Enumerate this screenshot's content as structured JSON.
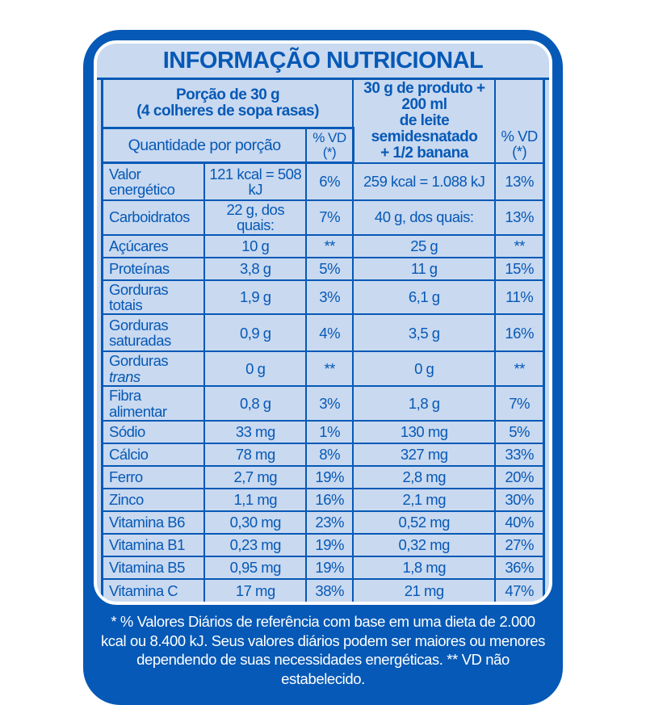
{
  "colors": {
    "primary_blue": "#0659b6",
    "panel_blue": "#c9d9f0",
    "footnote_text": "#ffffff"
  },
  "title": "INFORMAÇÃO NUTRICIONAL",
  "header": {
    "serving_left_line1": "Porção de 30 g",
    "serving_left_line2": "(4 colheres de sopa rasas)",
    "qty_col_label": "Quantidade por porção",
    "vd_col_label": "% VD (*)",
    "serving_right_line1": "30 g de produto + 200 ml",
    "serving_right_line2": "de leite semidesnatado",
    "serving_right_line3": "+ 1/2 banana",
    "vd_col_label_right": "% VD (*)"
  },
  "rows": [
    {
      "name": "Valor energético",
      "qty1": "121 kcal = 508 kJ",
      "vd1": "6%",
      "qty2": "259 kcal = 1.088 kJ",
      "vd2": "13%",
      "tall": true
    },
    {
      "name": "Carboidratos",
      "qty1": "22 g, dos quais:",
      "vd1": "7%",
      "qty2": "40 g, dos quais:",
      "vd2": "13%"
    },
    {
      "name": "Açúcares",
      "qty1": "10 g",
      "vd1": "**",
      "qty2": "25 g",
      "vd2": "**"
    },
    {
      "name": "Proteínas",
      "qty1": "3,8 g",
      "vd1": "5%",
      "qty2": "11 g",
      "vd2": "15%"
    },
    {
      "name": "Gorduras totais",
      "qty1": "1,9 g",
      "vd1": "3%",
      "qty2": "6,1 g",
      "vd2": "11%"
    },
    {
      "name": "Gorduras saturadas",
      "qty1": "0,9 g",
      "vd1": "4%",
      "qty2": "3,5 g",
      "vd2": "16%",
      "tall": true
    },
    {
      "name": "Gorduras ",
      "name_em": "trans",
      "qty1": "0 g",
      "vd1": "**",
      "qty2": "0 g",
      "vd2": "**"
    },
    {
      "name": "Fibra alimentar",
      "qty1": "0,8 g",
      "vd1": "3%",
      "qty2": "1,8 g",
      "vd2": "7%"
    },
    {
      "name": "Sódio",
      "qty1": "33 mg",
      "vd1": "1%",
      "qty2": "130 mg",
      "vd2": "5%"
    },
    {
      "name": "Cálcio",
      "qty1": "78 mg",
      "vd1": "8%",
      "qty2": "327 mg",
      "vd2": "33%"
    },
    {
      "name": "Ferro",
      "qty1": "2,7 mg",
      "vd1": "19%",
      "qty2": "2,8 mg",
      "vd2": "20%"
    },
    {
      "name": "Zinco",
      "qty1": "1,1 mg",
      "vd1": "16%",
      "qty2": "2,1 mg",
      "vd2": "30%"
    },
    {
      "name": "Vitamina B6",
      "qty1": "0,30 mg",
      "vd1": "23%",
      "qty2": "0,52 mg",
      "vd2": "40%"
    },
    {
      "name": "Vitamina B1",
      "qty1": "0,23 mg",
      "vd1": "19%",
      "qty2": "0,32 mg",
      "vd2": "27%"
    },
    {
      "name": "Vitamina B5",
      "qty1": "0,95 mg",
      "vd1": "19%",
      "qty2": "1,8 mg",
      "vd2": "36%"
    },
    {
      "name": "Vitamina C",
      "qty1": "17 mg",
      "vd1": "38%",
      "qty2": "21 mg",
      "vd2": "47%"
    }
  ],
  "footnote": "* % Valores Diários de referência com base em uma dieta de 2.000 kcal ou 8.400 kJ. Seus valores diários podem ser maiores ou menores dependendo de suas necessidades energéticas. ** VD não estabelecido."
}
